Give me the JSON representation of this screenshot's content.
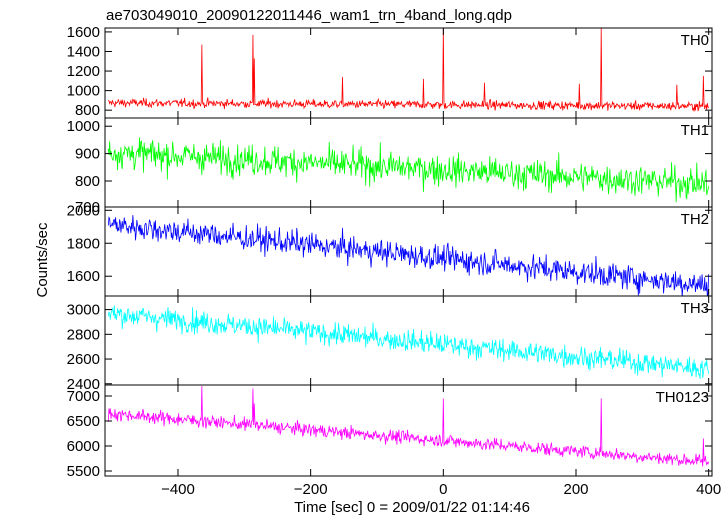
{
  "chart_data": {
    "type": "line",
    "title": "ae703049010_20090122011446_wam1_trn_4band_long.qdp",
    "xlabel": "Time [sec] 0 = 2009/01/22 01:14:46",
    "ylabel": "Counts/sec",
    "xlim": [
      -510,
      405
    ],
    "x_ticks": [
      -400,
      -200,
      0,
      200,
      400
    ],
    "x_tick_labels": [
      "−400",
      "−200",
      "0",
      "200",
      "400"
    ],
    "time_step_sec": 1,
    "panels": [
      {
        "name": "TH0",
        "color": "#ff0000",
        "ylim": [
          720,
          1640
        ],
        "y_ticks": [
          800,
          1000,
          1200,
          1400,
          1600
        ],
        "y_tick_labels": [
          "800",
          "1000",
          "1200",
          "1400",
          "1600"
        ],
        "trend": [
          [
            -505,
            875
          ],
          [
            400,
            840
          ]
        ],
        "noise_sd": 22,
        "spikes": [
          [
            -364,
            1470
          ],
          [
            -287,
            1570
          ],
          [
            -285,
            1330
          ],
          [
            -152,
            1140
          ],
          [
            -30,
            1120
          ],
          [
            0,
            1640
          ],
          [
            62,
            1080
          ],
          [
            205,
            1070
          ],
          [
            238,
            1640
          ],
          [
            352,
            1060
          ],
          [
            392,
            1150
          ]
        ]
      },
      {
        "name": "TH1",
        "color": "#00ff00",
        "ylim": [
          705,
          1030
        ],
        "y_ticks": [
          700,
          800,
          900,
          1000
        ],
        "y_tick_labels": [
          "700",
          "800",
          "900",
          "1000"
        ],
        "trend": [
          [
            -505,
            905
          ],
          [
            400,
            790
          ]
        ],
        "noise_sd": 28,
        "spikes": []
      },
      {
        "name": "TH2",
        "color": "#0000ff",
        "ylim": [
          1480,
          2020
        ],
        "y_ticks": [
          1600,
          1800,
          2000
        ],
        "y_tick_labels": [
          "1600",
          "1800",
          "2000"
        ],
        "trend": [
          [
            -505,
            1915
          ],
          [
            400,
            1545
          ]
        ],
        "noise_sd": 38,
        "spikes": []
      },
      {
        "name": "TH3",
        "color": "#00ffff",
        "ylim": [
          2390,
          3110
        ],
        "y_ticks": [
          2400,
          2600,
          2800,
          3000
        ],
        "y_tick_labels": [
          "2400",
          "2600",
          "2800",
          "3000"
        ],
        "trend": [
          [
            -505,
            2970
          ],
          [
            400,
            2520
          ]
        ],
        "noise_sd": 45,
        "spikes": []
      },
      {
        "name": "TH0123",
        "color": "#ff00ff",
        "ylim": [
          5400,
          7220
        ],
        "y_ticks": [
          5500,
          6000,
          6500,
          7000
        ],
        "y_tick_labels": [
          "5500",
          "6000",
          "6500",
          "7000"
        ],
        "trend": [
          [
            -505,
            6650
          ],
          [
            400,
            5680
          ]
        ],
        "noise_sd": 65,
        "spikes": [
          [
            -364,
            7200
          ],
          [
            -287,
            7150
          ],
          [
            -285,
            6850
          ],
          [
            0,
            6950
          ],
          [
            238,
            6950
          ],
          [
            392,
            6150
          ]
        ]
      }
    ]
  }
}
